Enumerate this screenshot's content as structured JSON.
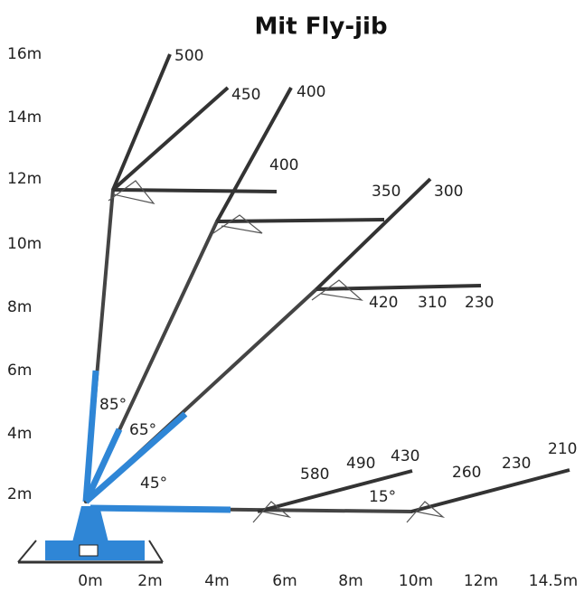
{
  "title": "Mit Fly-jib",
  "y_labels": [
    "16m",
    "14m",
    "12m",
    "10m",
    "8m",
    "6m",
    "4m",
    "2m"
  ],
  "x_labels": [
    "0m",
    "2m",
    "4m",
    "6m",
    "8m",
    "10m",
    "12m",
    "14.5m"
  ],
  "angles": [
    "85°",
    "65°",
    "45°",
    "15°"
  ],
  "loads": [
    "500",
    "450",
    "400",
    "400",
    "350",
    "300",
    "420",
    "310",
    "230",
    "580",
    "490",
    "430",
    "260",
    "230",
    "210"
  ]
}
